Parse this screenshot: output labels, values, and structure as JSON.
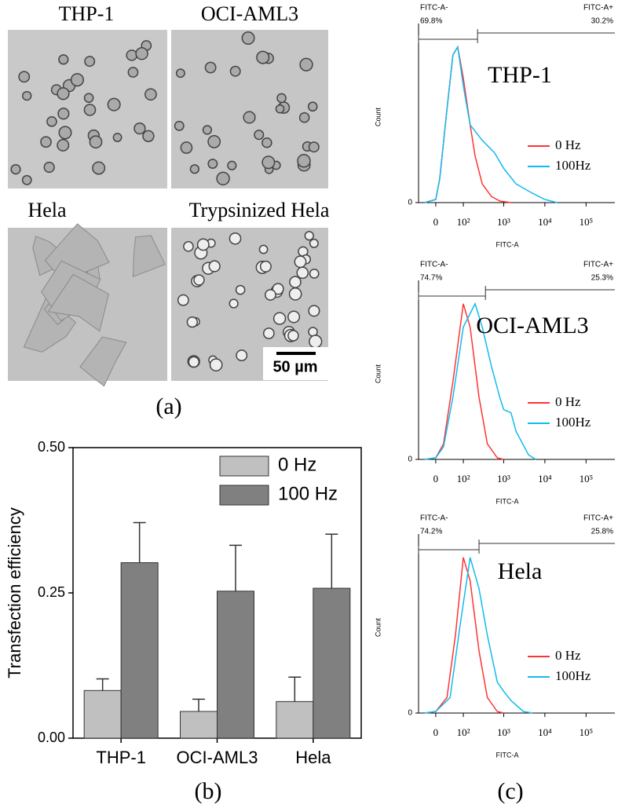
{
  "panel_a": {
    "label": "(a)",
    "images": [
      {
        "title": "THP-1"
      },
      {
        "title": "OCI-AML3"
      },
      {
        "title": "Hela"
      },
      {
        "title": "Trypsinized Hela"
      }
    ],
    "scale_bar": "50 µm"
  },
  "panel_b_label": "(b)",
  "panel_c_label": "(c)",
  "chart_data": [
    {
      "type": "bar",
      "ylabel": "Transfection efficiency",
      "categories": [
        "THP-1",
        "OCI-AML3",
        "Hela"
      ],
      "series": [
        {
          "name": "0 Hz",
          "color": "#c0c0c0",
          "values": [
            0.082,
            0.046,
            0.063
          ],
          "errors": [
            0.02,
            0.021,
            0.042
          ]
        },
        {
          "name": "100 Hz",
          "color": "#808080",
          "values": [
            0.302,
            0.253,
            0.258
          ],
          "errors": [
            0.069,
            0.079,
            0.093
          ]
        }
      ],
      "ylim": [
        0,
        0.5
      ],
      "yticks": [
        {
          "value": 0,
          "label": "0.00"
        },
        0.25,
        {
          "value": 0.5,
          "label": "0.50"
        }
      ]
    },
    {
      "type": "line",
      "title": "THP-1",
      "xlabel": "FITC-A",
      "ylabel": "Count",
      "gates": [
        {
          "name": "FITC-A-",
          "percent": "69.8%"
        },
        {
          "name": "FITC-A+",
          "percent": "30.2%"
        }
      ],
      "gate_boundary": 230,
      "series": [
        {
          "name": "0 Hz",
          "color": "#ff3333",
          "x": [
            -30,
            0,
            10,
            30,
            50,
            70,
            100,
            150,
            200,
            300,
            500,
            800,
            1500
          ],
          "values": [
            0,
            2,
            15,
            60,
            95,
            100,
            80,
            50,
            30,
            12,
            4,
            1,
            0
          ]
        },
        {
          "name": "100Hz",
          "color": "#11bbee",
          "x": [
            -30,
            0,
            10,
            30,
            50,
            70,
            100,
            150,
            300,
            600,
            1000,
            2000,
            5000,
            10000,
            20000
          ],
          "values": [
            0,
            2,
            15,
            60,
            95,
            100,
            75,
            50,
            40,
            32,
            22,
            12,
            6,
            2,
            0
          ]
        }
      ],
      "xlim": [
        -50,
        500000
      ],
      "xticks": [
        0,
        {
          "value": 100,
          "label": "10²"
        },
        {
          "value": 1000,
          "label": "10³"
        },
        {
          "value": 10000,
          "label": "10⁴"
        },
        {
          "value": 100000,
          "label": "10⁵"
        }
      ],
      "ylim": [
        0,
        110
      ],
      "yticks": [
        0
      ]
    },
    {
      "type": "line",
      "title": "OCI-AML3",
      "xlabel": "FITC-A",
      "ylabel": "Count",
      "gates": [
        {
          "name": "FITC-A-",
          "percent": "74.7%"
        },
        {
          "name": "FITC-A+",
          "percent": "25.3%"
        }
      ],
      "gate_boundary": 360,
      "series": [
        {
          "name": "0 Hz",
          "color": "#ff3333",
          "x": [
            -30,
            0,
            20,
            50,
            100,
            150,
            250,
            400,
            700,
            1000
          ],
          "values": [
            0,
            1,
            10,
            50,
            100,
            85,
            40,
            10,
            1,
            0
          ]
        },
        {
          "name": "100Hz",
          "color": "#11bbee",
          "x": [
            -30,
            0,
            20,
            50,
            100,
            200,
            300,
            500,
            800,
            1000,
            1500,
            2000,
            4000,
            6000
          ],
          "values": [
            0,
            1,
            8,
            40,
            85,
            100,
            85,
            60,
            40,
            32,
            30,
            18,
            3,
            0
          ]
        }
      ],
      "xlim": [
        -50,
        500000
      ],
      "xticks": [
        0,
        {
          "value": 100,
          "label": "10²"
        },
        {
          "value": 1000,
          "label": "10³"
        },
        {
          "value": 10000,
          "label": "10⁴"
        },
        {
          "value": 100000,
          "label": "10⁵"
        }
      ],
      "ylim": [
        0,
        110
      ],
      "yticks": [
        0
      ]
    },
    {
      "type": "line",
      "title": "Hela",
      "xlabel": "FITC-A",
      "ylabel": "Count",
      "gates": [
        {
          "name": "FITC-A-",
          "percent": "74.2%"
        },
        {
          "name": "FITC-A+",
          "percent": "25.8%"
        }
      ],
      "gate_boundary": 250,
      "series": [
        {
          "name": "0 Hz",
          "color": "#ff3333",
          "x": [
            -30,
            0,
            30,
            60,
            100,
            150,
            250,
            400,
            700,
            1000
          ],
          "values": [
            0,
            1,
            10,
            50,
            100,
            85,
            40,
            10,
            1,
            0
          ]
        },
        {
          "name": "100Hz",
          "color": "#11bbee",
          "x": [
            -30,
            0,
            40,
            80,
            150,
            250,
            400,
            700,
            1000,
            1500,
            3000,
            5000
          ],
          "values": [
            0,
            1,
            10,
            55,
            100,
            80,
            50,
            20,
            14,
            8,
            1,
            0
          ]
        }
      ],
      "xlim": [
        -50,
        500000
      ],
      "xticks": [
        0,
        {
          "value": 100,
          "label": "10²"
        },
        {
          "value": 1000,
          "label": "10³"
        },
        {
          "value": 10000,
          "label": "10⁴"
        },
        {
          "value": 100000,
          "label": "10⁵"
        }
      ],
      "ylim": [
        0,
        110
      ],
      "yticks": [
        0
      ]
    }
  ]
}
